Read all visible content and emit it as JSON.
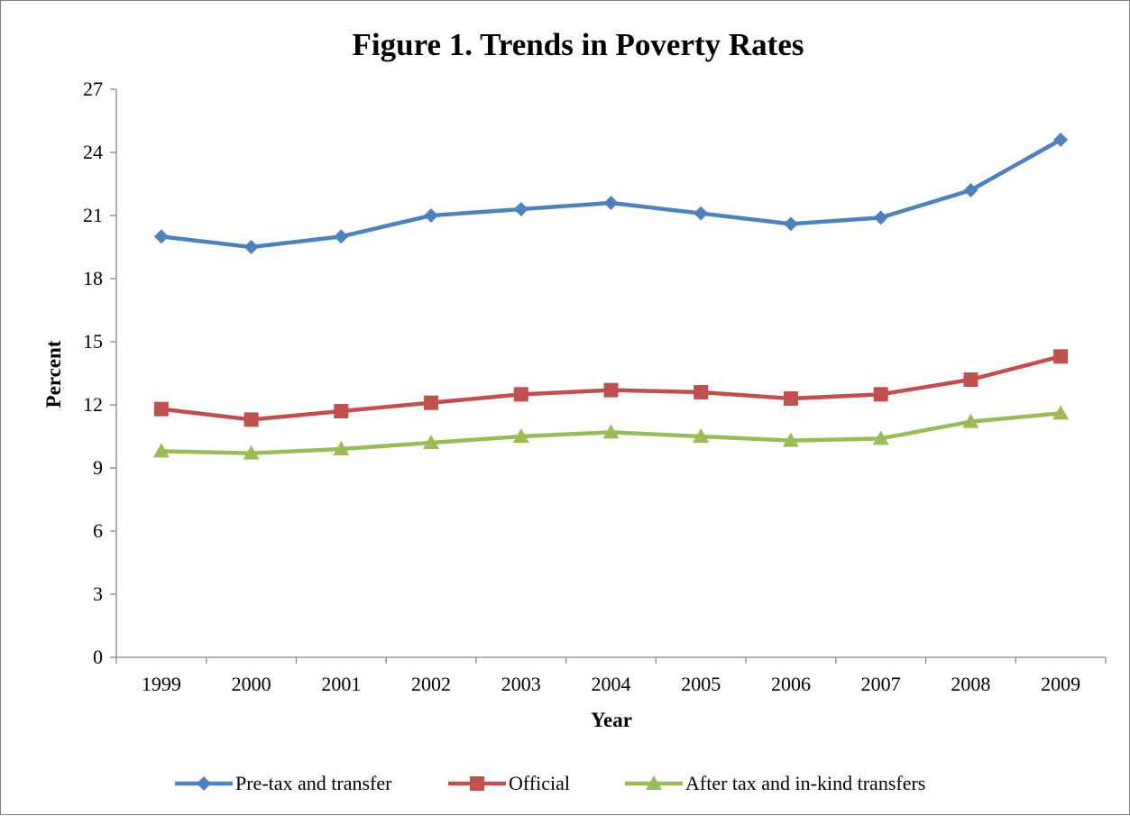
{
  "chart_data": {
    "type": "line",
    "title": "Figure 1. Trends in Poverty Rates",
    "xlabel": "Year",
    "ylabel": "Percent",
    "categories": [
      "1999",
      "2000",
      "2001",
      "2002",
      "2003",
      "2004",
      "2005",
      "2006",
      "2007",
      "2008",
      "2009"
    ],
    "ylim": [
      0,
      27
    ],
    "yticks": [
      0,
      3,
      6,
      9,
      12,
      15,
      18,
      21,
      24,
      27
    ],
    "grid": false,
    "legend_position": "bottom",
    "series": [
      {
        "name": "Pre-tax and transfer",
        "color": "#4f81bd",
        "marker": "diamond",
        "values": [
          20.0,
          19.5,
          20.0,
          21.0,
          21.3,
          21.6,
          21.1,
          20.6,
          20.9,
          22.2,
          24.6
        ]
      },
      {
        "name": "Official",
        "color": "#c0504d",
        "marker": "square",
        "values": [
          11.8,
          11.3,
          11.7,
          12.1,
          12.5,
          12.7,
          12.6,
          12.3,
          12.5,
          13.2,
          14.3
        ]
      },
      {
        "name": "After tax and in-kind transfers",
        "color": "#9bbb59",
        "marker": "triangle",
        "values": [
          9.8,
          9.7,
          9.9,
          10.2,
          10.5,
          10.7,
          10.5,
          10.3,
          10.4,
          11.2,
          11.6
        ]
      }
    ]
  }
}
